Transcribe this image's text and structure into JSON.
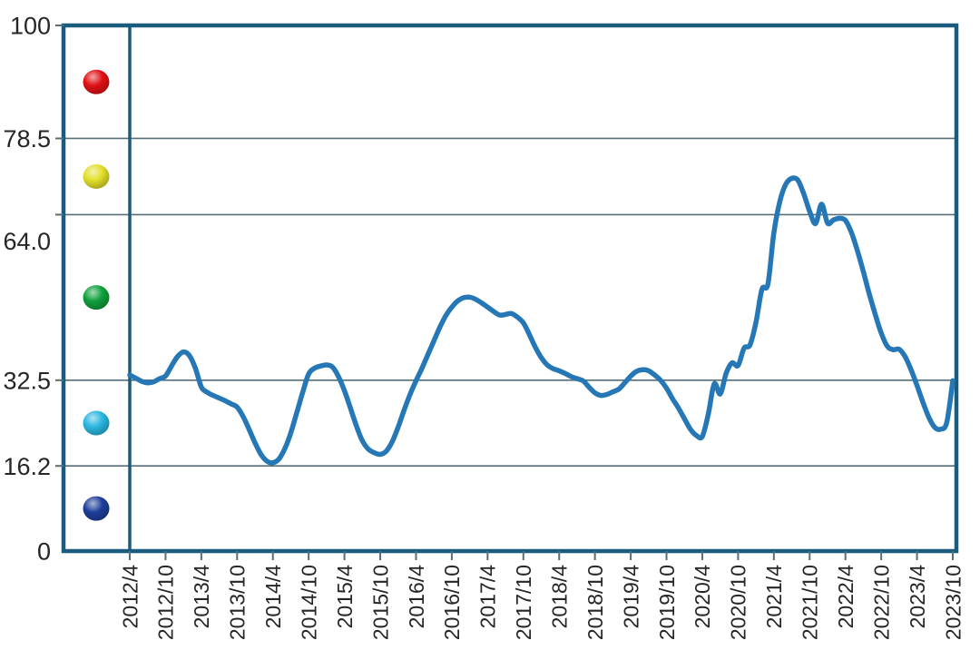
{
  "chart_data": {
    "type": "line",
    "title": "",
    "legend": "none",
    "grid": "horizontal-only",
    "ylim": [
      0,
      100
    ],
    "y_tick_labels": [
      "100",
      "78.5",
      "64.0",
      "32.5",
      "16.2",
      "0"
    ],
    "y_tick_values": [
      100,
      78.5,
      64.0,
      32.5,
      16.2,
      0
    ],
    "x_tick_labels": [
      "2012/4",
      "2012/10",
      "2013/4",
      "2013/10",
      "2014/4",
      "2014/10",
      "2015/4",
      "2015/10",
      "2016/4",
      "2016/10",
      "2017/4",
      "2017/10",
      "2018/4",
      "2018/10",
      "2019/4",
      "2019/10",
      "2020/4",
      "2020/10",
      "2021/4",
      "2021/10",
      "2022/4",
      "2022/10",
      "2023/4",
      "2023/10"
    ],
    "x_start": "2012/4",
    "x_interval_months": 1,
    "zone_markers": [
      {
        "name": "red",
        "color": "#e01015",
        "range": [
          78.5,
          100
        ]
      },
      {
        "name": "yellow",
        "color": "#e2df2a",
        "range": [
          64.0,
          78.5
        ]
      },
      {
        "name": "green",
        "color": "#0fa03c",
        "range": [
          32.5,
          64.0
        ]
      },
      {
        "name": "cyan",
        "color": "#2ab6e0",
        "range": [
          16.2,
          32.5
        ]
      },
      {
        "name": "navy",
        "color": "#1e3e99",
        "range": [
          0,
          16.2
        ]
      }
    ],
    "series": [
      {
        "name": "index-line",
        "color": "#2577b6",
        "values": [
          33.5,
          32.9,
          32.3,
          32.0,
          32.2,
          32.8,
          33.3,
          35.2,
          37.0,
          37.9,
          37.2,
          34.8,
          31.2,
          30.2,
          29.6,
          29.1,
          28.6,
          28.0,
          27.4,
          25.6,
          23.2,
          20.6,
          18.4,
          17.1,
          16.8,
          17.5,
          19.5,
          22.5,
          26.3,
          30.2,
          33.7,
          34.8,
          35.2,
          35.4,
          35.0,
          33.2,
          30.5,
          27.2,
          23.8,
          21.0,
          19.4,
          18.7,
          18.4,
          19.0,
          20.8,
          23.6,
          26.8,
          29.8,
          32.4,
          34.8,
          37.4,
          40.0,
          42.6,
          44.8,
          46.4,
          47.6,
          48.2,
          48.3,
          47.9,
          47.2,
          46.4,
          45.6,
          44.9,
          45.0,
          45.2,
          44.5,
          43.4,
          41.2,
          38.8,
          36.8,
          35.4,
          34.7,
          34.3,
          33.8,
          33.2,
          32.8,
          32.4,
          31.2,
          30.1,
          29.6,
          29.8,
          30.3,
          30.8,
          32.0,
          33.3,
          34.2,
          34.5,
          34.3,
          33.5,
          32.5,
          31.0,
          29.0,
          27.2,
          25.2,
          23.2,
          22.0,
          21.8,
          26.0,
          31.8,
          29.9,
          33.8,
          35.8,
          35.3,
          38.6,
          39.2,
          43.5,
          49.8,
          50.8,
          60.5,
          66.5,
          69.8,
          70.9,
          70.6,
          68.0,
          64.6,
          62.3,
          66.0,
          62.4,
          63.0,
          63.3,
          62.9,
          60.6,
          57.2,
          53.2,
          48.9,
          45.0,
          41.5,
          39.0,
          38.3,
          38.4,
          37.0,
          34.5,
          31.5,
          28.3,
          25.4,
          23.5,
          23.2,
          24.5,
          32.4
        ]
      }
    ],
    "frame_color": "#1a5c7e",
    "grid_color": "#566e78",
    "text_color": "#262626"
  }
}
